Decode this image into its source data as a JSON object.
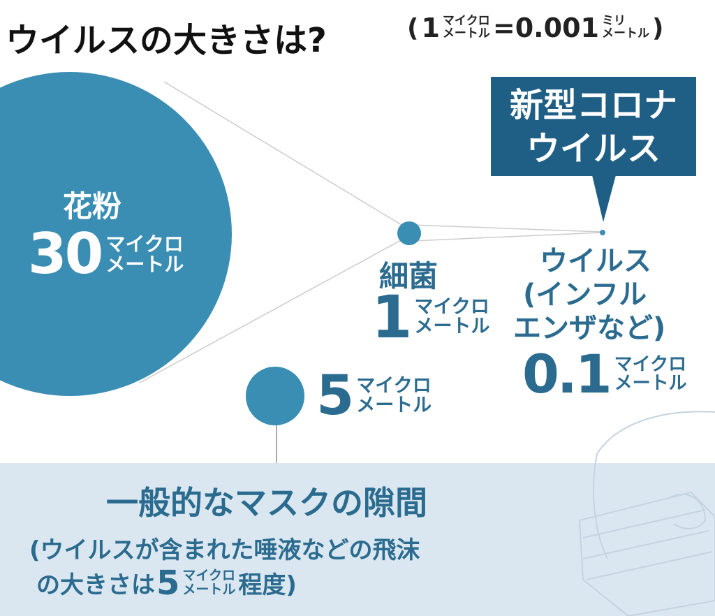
{
  "title": "ウイルスの大きさは?",
  "note": {
    "open": "(",
    "one": "1",
    "unit_top": "マイクロ",
    "unit_bottom": "メートル",
    "equals": "=0.001",
    "mm_top": "ミリ",
    "mm_bottom": "メートル",
    "close": ")"
  },
  "unit": {
    "top": "マイクロ",
    "bottom": "メートル"
  },
  "pollen": {
    "name": "花粉",
    "size": "30"
  },
  "bacteria": {
    "name": "細菌",
    "size": "1"
  },
  "influenza": {
    "name_line1": "ウイルス",
    "name_line2": "(インフル",
    "name_line3": "エンザなど)",
    "size": "0.1"
  },
  "corona_callout": {
    "line1": "新型コロナ",
    "line2": "ウイルス"
  },
  "mask_gap": {
    "size": "5"
  },
  "mask_panel": {
    "title": "一般的なマスクの隙間",
    "line1": "(ウイルスが含まれた唾液などの飛沫",
    "line2_a": "の大きさは",
    "line2_num": "5",
    "line2_b": "程度)"
  },
  "colors": {
    "circle": "#3a8db3",
    "callout": "#1f5f86",
    "panel": "#dbe7f0",
    "text_teal": "#2a6b8f",
    "connector": "#cccccc"
  }
}
